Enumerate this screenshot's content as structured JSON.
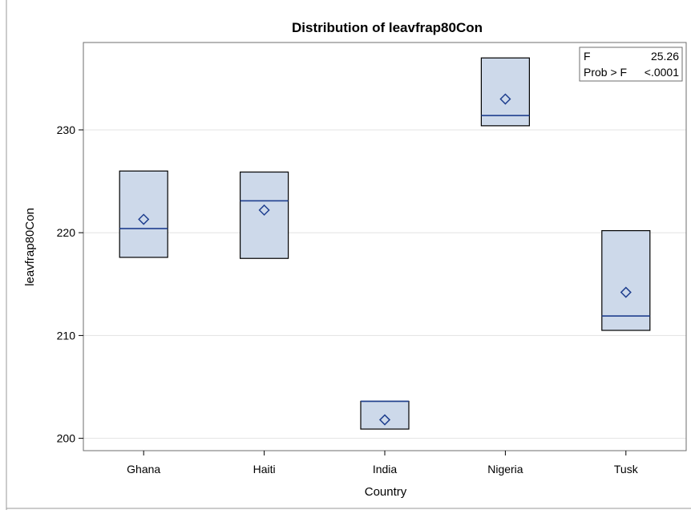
{
  "chart_data": {
    "type": "box",
    "title": "Distribution of leavfrap80Con",
    "xlabel": "Country",
    "ylabel": "leavfrap80Con",
    "categories": [
      "Ghana",
      "Haiti",
      "India",
      "Nigeria",
      "Tusk"
    ],
    "ylim": [
      198.8,
      238.5
    ],
    "yticks": [
      200,
      210,
      220,
      230
    ],
    "grid": "horizontal",
    "boxes": [
      {
        "category": "Ghana",
        "min": 217.6,
        "q1": 217.6,
        "median": 220.4,
        "q3": 226.0,
        "max": 226.0,
        "mean": 221.3
      },
      {
        "category": "Haiti",
        "min": 217.5,
        "q1": 217.5,
        "median": 223.1,
        "q3": 225.9,
        "max": 225.9,
        "mean": 222.2
      },
      {
        "category": "India",
        "min": 200.9,
        "q1": 200.9,
        "median": 203.6,
        "q3": 203.6,
        "max": 203.6,
        "mean": 201.8
      },
      {
        "category": "Nigeria",
        "min": 230.4,
        "q1": 230.4,
        "median": 231.4,
        "q3": 237.0,
        "max": 237.0,
        "mean": 233.0
      },
      {
        "category": "Tusk",
        "min": 210.5,
        "q1": 210.5,
        "median": 211.9,
        "q3": 220.2,
        "max": 220.2,
        "mean": 214.2
      }
    ],
    "colors": {
      "box_fill": "#cdd9ea",
      "median_line": "#1f3f8f",
      "mean_marker": "#1f3f8f",
      "box_border": "#000000",
      "grid": "#e3e3e3"
    },
    "stats_box": {
      "placement": "top-right",
      "rows": [
        {
          "label": "F",
          "value": "25.26"
        },
        {
          "label": "Prob > F",
          "value": "<.0001"
        }
      ]
    }
  }
}
